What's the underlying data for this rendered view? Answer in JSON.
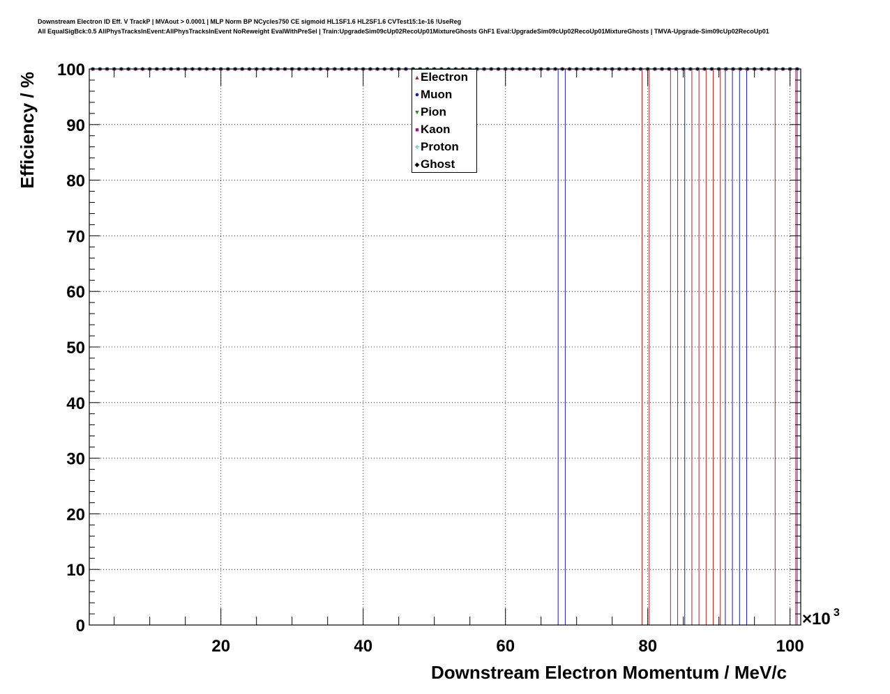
{
  "title_line1": "Downstream Electron ID Eff. V TrackP | MVAout > 0.0001 | MLP Norm BP NCycles750 CE sigmoid HL1SF1.6 HL2SF1.6 CVTest15:1e-16 !UseReg",
  "title_line2": "All EqualSigBck:0.5 AllPhysTracksInEvent:AllPhysTracksInEvent NoReweight EvalWithPreSel | Train:UpgradeSim09cUp02RecoUp01MixtureGhosts GhF1 Eval:UpgradeSim09cUp02RecoUp01MixtureGhosts | TMVA-Upgrade-Sim09cUp02RecoUp01",
  "chart_data": {
    "type": "line",
    "xlabel": "Downstream Electron Momentum / MeV/c",
    "ylabel": "Efficiency / %",
    "x_multiplier_label": "×10",
    "x_multiplier_exp": "3",
    "xlim": [
      1.5,
      101.5
    ],
    "ylim": [
      0,
      100
    ],
    "x_ticks": [
      20,
      40,
      60,
      80,
      100
    ],
    "y_ticks": [
      0,
      10,
      20,
      30,
      40,
      50,
      60,
      70,
      80,
      90,
      100
    ],
    "grid": true,
    "legend_position": "top-center",
    "series": [
      {
        "name": "Electron",
        "color": "#b22222",
        "marker": "triangle-up",
        "x_range": [
          1.5,
          101.5
        ],
        "y": 100,
        "vertical_lines_x": [
          79.2,
          80.2,
          83.2,
          84.2,
          86.2,
          87.2,
          88.2,
          89.2,
          90.2,
          97.9,
          100.8
        ]
      },
      {
        "name": "Muon",
        "color": "#1a1ab2",
        "marker": "circle",
        "x_range": [
          1.5,
          101.5
        ],
        "y": 100,
        "vertical_lines_x": [
          67.4,
          68.4,
          85.2,
          90.9,
          91.9,
          92.9,
          93.9,
          101.0
        ]
      },
      {
        "name": "Pion",
        "color": "#1f8a1f",
        "marker": "triangle-down",
        "x_range": [
          1.5,
          101.5
        ],
        "y": 100,
        "vertical_lines_x": []
      },
      {
        "name": "Kaon",
        "color": "#8b1a8b",
        "marker": "square",
        "x_range": [
          1.5,
          101.5
        ],
        "y": 100,
        "vertical_lines_x": []
      },
      {
        "name": "Proton",
        "color": "#5fc8c8",
        "marker": "cross",
        "x_range": [
          1.5,
          101.5
        ],
        "y": 100,
        "vertical_lines_x": []
      },
      {
        "name": "Ghost",
        "color": "#000000",
        "marker": "diamond",
        "x_range": [
          1.5,
          101.5
        ],
        "y": 100,
        "vertical_lines_x": []
      }
    ]
  }
}
